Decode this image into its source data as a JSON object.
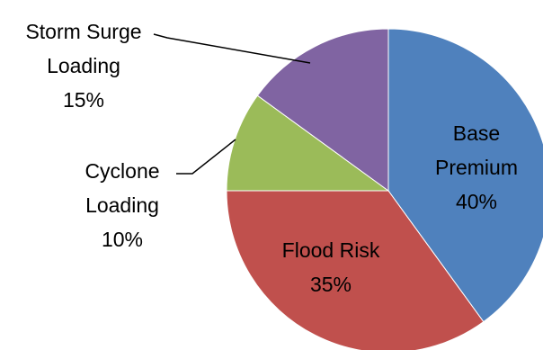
{
  "chart_data": {
    "type": "pie",
    "slices": [
      {
        "label_lines": [
          "Base",
          "Premium",
          "40%"
        ],
        "value": 40,
        "color": "#4f81bd"
      },
      {
        "label_lines": [
          "Flood Risk",
          "35%"
        ],
        "value": 35,
        "color": "#c0504d"
      },
      {
        "label_lines": [
          "Cyclone",
          "Loading",
          "10%"
        ],
        "value": 10,
        "color": "#9bbb59"
      },
      {
        "label_lines": [
          "Storm Surge",
          "Loading",
          "15%"
        ],
        "value": 15,
        "color": "#8064a2"
      }
    ],
    "start_angle": "12 o'clock",
    "direction": "clockwise",
    "legend": "none",
    "title": ""
  }
}
